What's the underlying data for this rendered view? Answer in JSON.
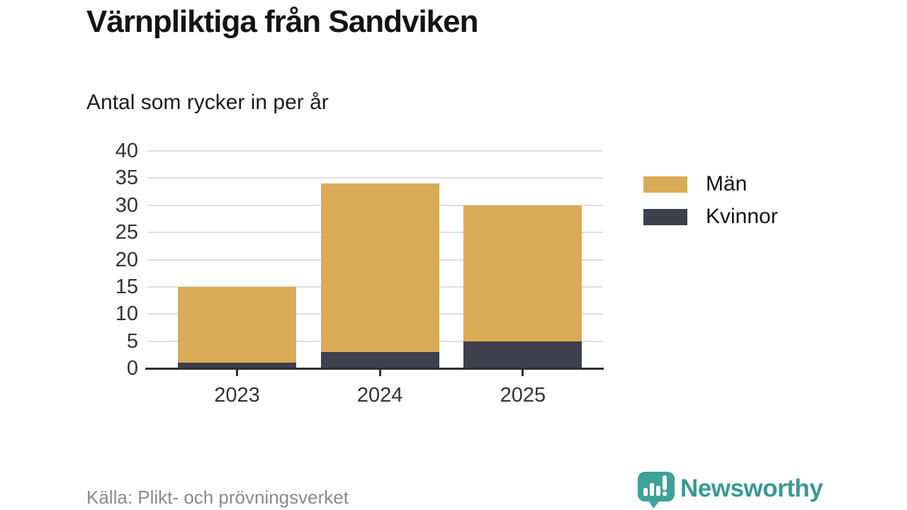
{
  "header": {
    "title": "Värnpliktiga från Sandviken",
    "subtitle": "Antal som rycker in per år"
  },
  "footer": {
    "source": "Källa: Plikt- och prövningsverket",
    "brand": "Newsworthy",
    "brand_icon": "bar-chart-speech-bubble-icon"
  },
  "colors": {
    "men": "#d9ab57",
    "women": "#3f3f4e",
    "axis": "#2f2f2f",
    "grid": "#e0e0e0",
    "brand_teal": "#3fa198",
    "source_gray": "#8a8a8a"
  },
  "chart_data": {
    "type": "bar",
    "stacked": true,
    "title": "Värnpliktiga från Sandviken",
    "subtitle": "Antal som rycker in per år",
    "source": "Källa: Plikt- och prövningsverket",
    "categories": [
      "2023",
      "2024",
      "2025"
    ],
    "series": [
      {
        "name": "Män",
        "color": "#d9ab57",
        "values": [
          14,
          31,
          25
        ]
      },
      {
        "name": "Kvinnor",
        "color": "#3f3f4e",
        "values": [
          1,
          3,
          5
        ]
      }
    ],
    "totals": [
      15,
      34,
      30
    ],
    "xlabel": "",
    "ylabel": "",
    "ylim": [
      0,
      40
    ],
    "yticks": [
      0,
      5,
      10,
      15,
      20,
      25,
      30,
      35,
      40
    ],
    "grid": true,
    "legend_position": "right"
  }
}
